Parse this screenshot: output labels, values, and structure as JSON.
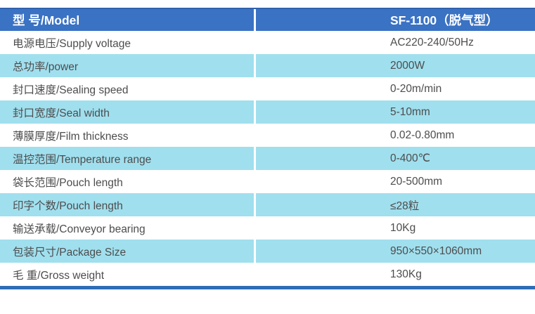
{
  "colors": {
    "header_bg": "#3a72c4",
    "header_top_border": "#2f62b0",
    "header_text": "#ffffff",
    "row_bg": "#ffffff",
    "row_alt_bg": "#a0dfee",
    "body_text": "#4d4d4d",
    "bottom_bar": "#2f6cb6",
    "column_divider": "#ffffff"
  },
  "table": {
    "header": {
      "model_label": "型 号/Model",
      "model_value": "SF-1100（脱气型）"
    },
    "rows": [
      {
        "label": "电源电压/Supply voltage",
        "value": "AC220-240/50Hz"
      },
      {
        "label": "总功率/power",
        "value": "2000W"
      },
      {
        "label": "封口速度/Sealing speed",
        "value": "0-20m/min"
      },
      {
        "label": "封口宽度/Seal width",
        "value": "5-10mm"
      },
      {
        "label": "薄膜厚度/Film thickness",
        "value": "0.02-0.80mm"
      },
      {
        "label": "温控范围/Temperature range",
        "value": "0-400℃"
      },
      {
        "label": "袋长范围/Pouch length",
        "value": "20-500mm"
      },
      {
        "label": "印字个数/Pouch length",
        "value": "≤28粒"
      },
      {
        "label": "输送承载/Conveyor bearing",
        "value": "10Kg"
      },
      {
        "label": "包装尺寸/Package Size",
        "value": "950×550×1060mm"
      },
      {
        "label": "毛 重/Gross weight",
        "value": "130Kg"
      }
    ]
  }
}
